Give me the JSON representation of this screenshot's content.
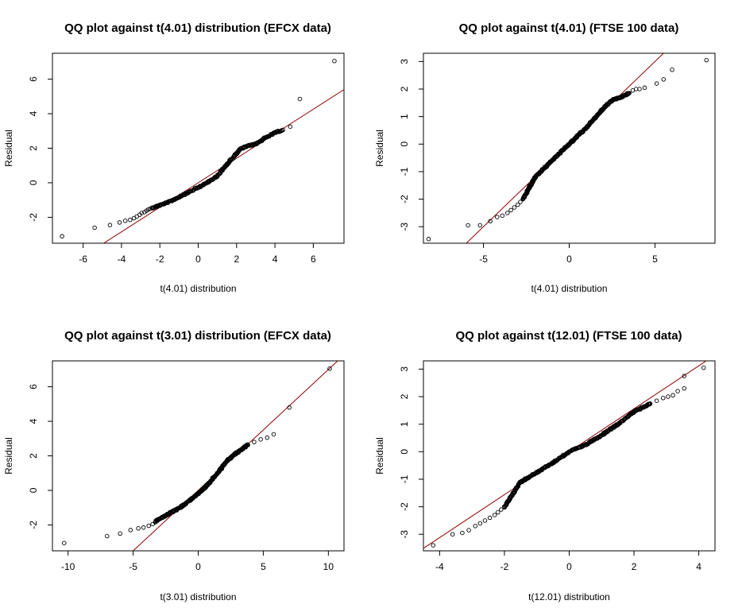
{
  "chart_data": [
    {
      "type": "scatter",
      "title": "QQ plot against t(4.01) distribution (EFCX data)",
      "xlabel": "t(4.01) distribution",
      "ylabel": "Residual",
      "xlim": [
        -7.6,
        7.6
      ],
      "ylim": [
        -3.5,
        7.5
      ],
      "xticks": [
        -6,
        -4,
        -2,
        0,
        2,
        4,
        6
      ],
      "yticks": [
        -2,
        0,
        2,
        4,
        6
      ],
      "ref_line": {
        "intercept": 0,
        "slope": 0.71
      },
      "n_points": 260,
      "points": [
        [
          -7.1,
          -3.1
        ],
        [
          -5.4,
          -2.6
        ],
        [
          -4.6,
          -2.45
        ],
        [
          -4.1,
          -2.3
        ],
        [
          -3.8,
          -2.2
        ],
        [
          -3.55,
          -2.15
        ],
        [
          -3.35,
          -2.05
        ],
        [
          -3.2,
          -1.95
        ],
        [
          -3.05,
          -1.85
        ],
        [
          -2.95,
          -1.75
        ],
        [
          -2.8,
          -1.7
        ],
        [
          -2.7,
          -1.62
        ],
        [
          -2.6,
          -1.55
        ],
        [
          -2.5,
          -1.5
        ],
        [
          -2.4,
          -1.45
        ],
        [
          4.8,
          3.25
        ],
        [
          5.3,
          4.85
        ],
        [
          7.1,
          7.05
        ]
      ],
      "curve": [
        [
          -2.4,
          -1.45
        ],
        [
          -1.5,
          -1.1
        ],
        [
          -0.5,
          -0.55
        ],
        [
          0.3,
          -0.1
        ],
        [
          1.0,
          0.4
        ],
        [
          1.6,
          1.2
        ],
        [
          2.2,
          1.95
        ],
        [
          2.5,
          2.1
        ],
        [
          3.0,
          2.25
        ],
        [
          3.5,
          2.6
        ],
        [
          4.0,
          2.9
        ],
        [
          4.4,
          3.05
        ]
      ]
    },
    {
      "type": "scatter",
      "title": "QQ plot against t(4.01) (FTSE 100 data)",
      "xlabel": "t(4.01) distribution",
      "ylabel": "Residual",
      "xlim": [
        -8.5,
        8.5
      ],
      "ylim": [
        -3.6,
        3.3
      ],
      "xticks": [
        -5,
        0,
        5
      ],
      "yticks": [
        -3,
        -2,
        -1,
        0,
        1,
        2,
        3
      ],
      "ref_line": {
        "intercept": 0,
        "slope": 0.6
      },
      "n_points": 320,
      "points": [
        [
          -8.2,
          -3.45
        ],
        [
          -5.9,
          -2.95
        ],
        [
          -5.2,
          -2.95
        ],
        [
          -4.6,
          -2.8
        ],
        [
          -4.2,
          -2.65
        ],
        [
          -3.9,
          -2.6
        ],
        [
          -3.6,
          -2.5
        ],
        [
          -3.4,
          -2.4
        ],
        [
          -3.2,
          -2.3
        ],
        [
          -3.0,
          -2.2
        ],
        [
          -2.85,
          -2.1
        ],
        [
          -2.7,
          -2.0
        ],
        [
          3.5,
          1.85
        ],
        [
          3.7,
          1.95
        ],
        [
          3.9,
          2.0
        ],
        [
          4.1,
          2.0
        ],
        [
          4.4,
          2.05
        ],
        [
          5.1,
          2.2
        ],
        [
          5.5,
          2.35
        ],
        [
          6.0,
          2.7
        ],
        [
          8.0,
          3.05
        ]
      ],
      "curve": [
        [
          -2.7,
          -2.0
        ],
        [
          -2.0,
          -1.2
        ],
        [
          -1.0,
          -0.6
        ],
        [
          0.0,
          0.0
        ],
        [
          1.0,
          0.6
        ],
        [
          2.0,
          1.3
        ],
        [
          2.5,
          1.6
        ],
        [
          3.0,
          1.7
        ],
        [
          3.5,
          1.85
        ]
      ]
    },
    {
      "type": "scatter",
      "title": "QQ plot against t(3.01) distribution (EFCX data)",
      "xlabel": "t(3.01) distribution",
      "ylabel": "Residual",
      "xlim": [
        -11.2,
        11.2
      ],
      "ylim": [
        -3.5,
        7.5
      ],
      "xticks": [
        -10,
        -5,
        0,
        5,
        10
      ],
      "yticks": [
        -2,
        0,
        2,
        4,
        6
      ],
      "ref_line": {
        "intercept": 0,
        "slope": 0.7
      },
      "n_points": 260,
      "points": [
        [
          -10.3,
          -3.05
        ],
        [
          -7.0,
          -2.65
        ],
        [
          -6.0,
          -2.5
        ],
        [
          -5.2,
          -2.3
        ],
        [
          -4.6,
          -2.2
        ],
        [
          -4.2,
          -2.15
        ],
        [
          -3.8,
          -2.05
        ],
        [
          -3.5,
          -1.95
        ],
        [
          -3.3,
          -1.85
        ],
        [
          3.8,
          2.65
        ],
        [
          4.3,
          2.8
        ],
        [
          4.8,
          2.95
        ],
        [
          5.3,
          3.05
        ],
        [
          5.8,
          3.25
        ],
        [
          7.0,
          4.8
        ],
        [
          10.1,
          7.05
        ]
      ],
      "curve": [
        [
          -3.3,
          -1.8
        ],
        [
          -2.5,
          -1.45
        ],
        [
          -1.5,
          -1.05
        ],
        [
          -0.5,
          -0.5
        ],
        [
          0.5,
          0.15
        ],
        [
          1.5,
          1.0
        ],
        [
          2.2,
          1.7
        ],
        [
          2.8,
          2.1
        ],
        [
          3.5,
          2.45
        ],
        [
          3.8,
          2.65
        ]
      ]
    },
    {
      "type": "scatter",
      "title": "QQ plot against t(12.01) (FTSE 100 data)",
      "xlabel": "t(12.01) distribution",
      "ylabel": "Residual",
      "xlim": [
        -4.5,
        4.5
      ],
      "ylim": [
        -3.6,
        3.3
      ],
      "xticks": [
        -4,
        -2,
        0,
        2,
        4
      ],
      "yticks": [
        -3,
        -2,
        -1,
        0,
        1,
        2,
        3
      ],
      "ref_line": {
        "intercept": 0,
        "slope": 0.78
      },
      "n_points": 320,
      "points": [
        [
          -4.2,
          -3.4
        ],
        [
          -3.6,
          -3.0
        ],
        [
          -3.3,
          -2.95
        ],
        [
          -3.1,
          -2.85
        ],
        [
          -2.9,
          -2.7
        ],
        [
          -2.75,
          -2.6
        ],
        [
          -2.6,
          -2.5
        ],
        [
          -2.45,
          -2.4
        ],
        [
          -2.3,
          -2.3
        ],
        [
          -2.2,
          -2.2
        ],
        [
          -2.1,
          -2.1
        ],
        [
          -2.0,
          -2.0
        ],
        [
          2.5,
          1.75
        ],
        [
          2.7,
          1.85
        ],
        [
          2.9,
          1.95
        ],
        [
          3.05,
          2.0
        ],
        [
          3.2,
          2.05
        ],
        [
          3.35,
          2.2
        ],
        [
          3.55,
          2.3
        ],
        [
          3.55,
          2.75
        ],
        [
          4.15,
          3.05
        ]
      ],
      "curve": [
        [
          -2.0,
          -2.0
        ],
        [
          -1.5,
          -1.1
        ],
        [
          -1.0,
          -0.75
        ],
        [
          -0.5,
          -0.4
        ],
        [
          0.0,
          0.0
        ],
        [
          0.5,
          0.25
        ],
        [
          1.0,
          0.6
        ],
        [
          1.5,
          1.0
        ],
        [
          2.0,
          1.45
        ],
        [
          2.5,
          1.75
        ]
      ]
    }
  ]
}
